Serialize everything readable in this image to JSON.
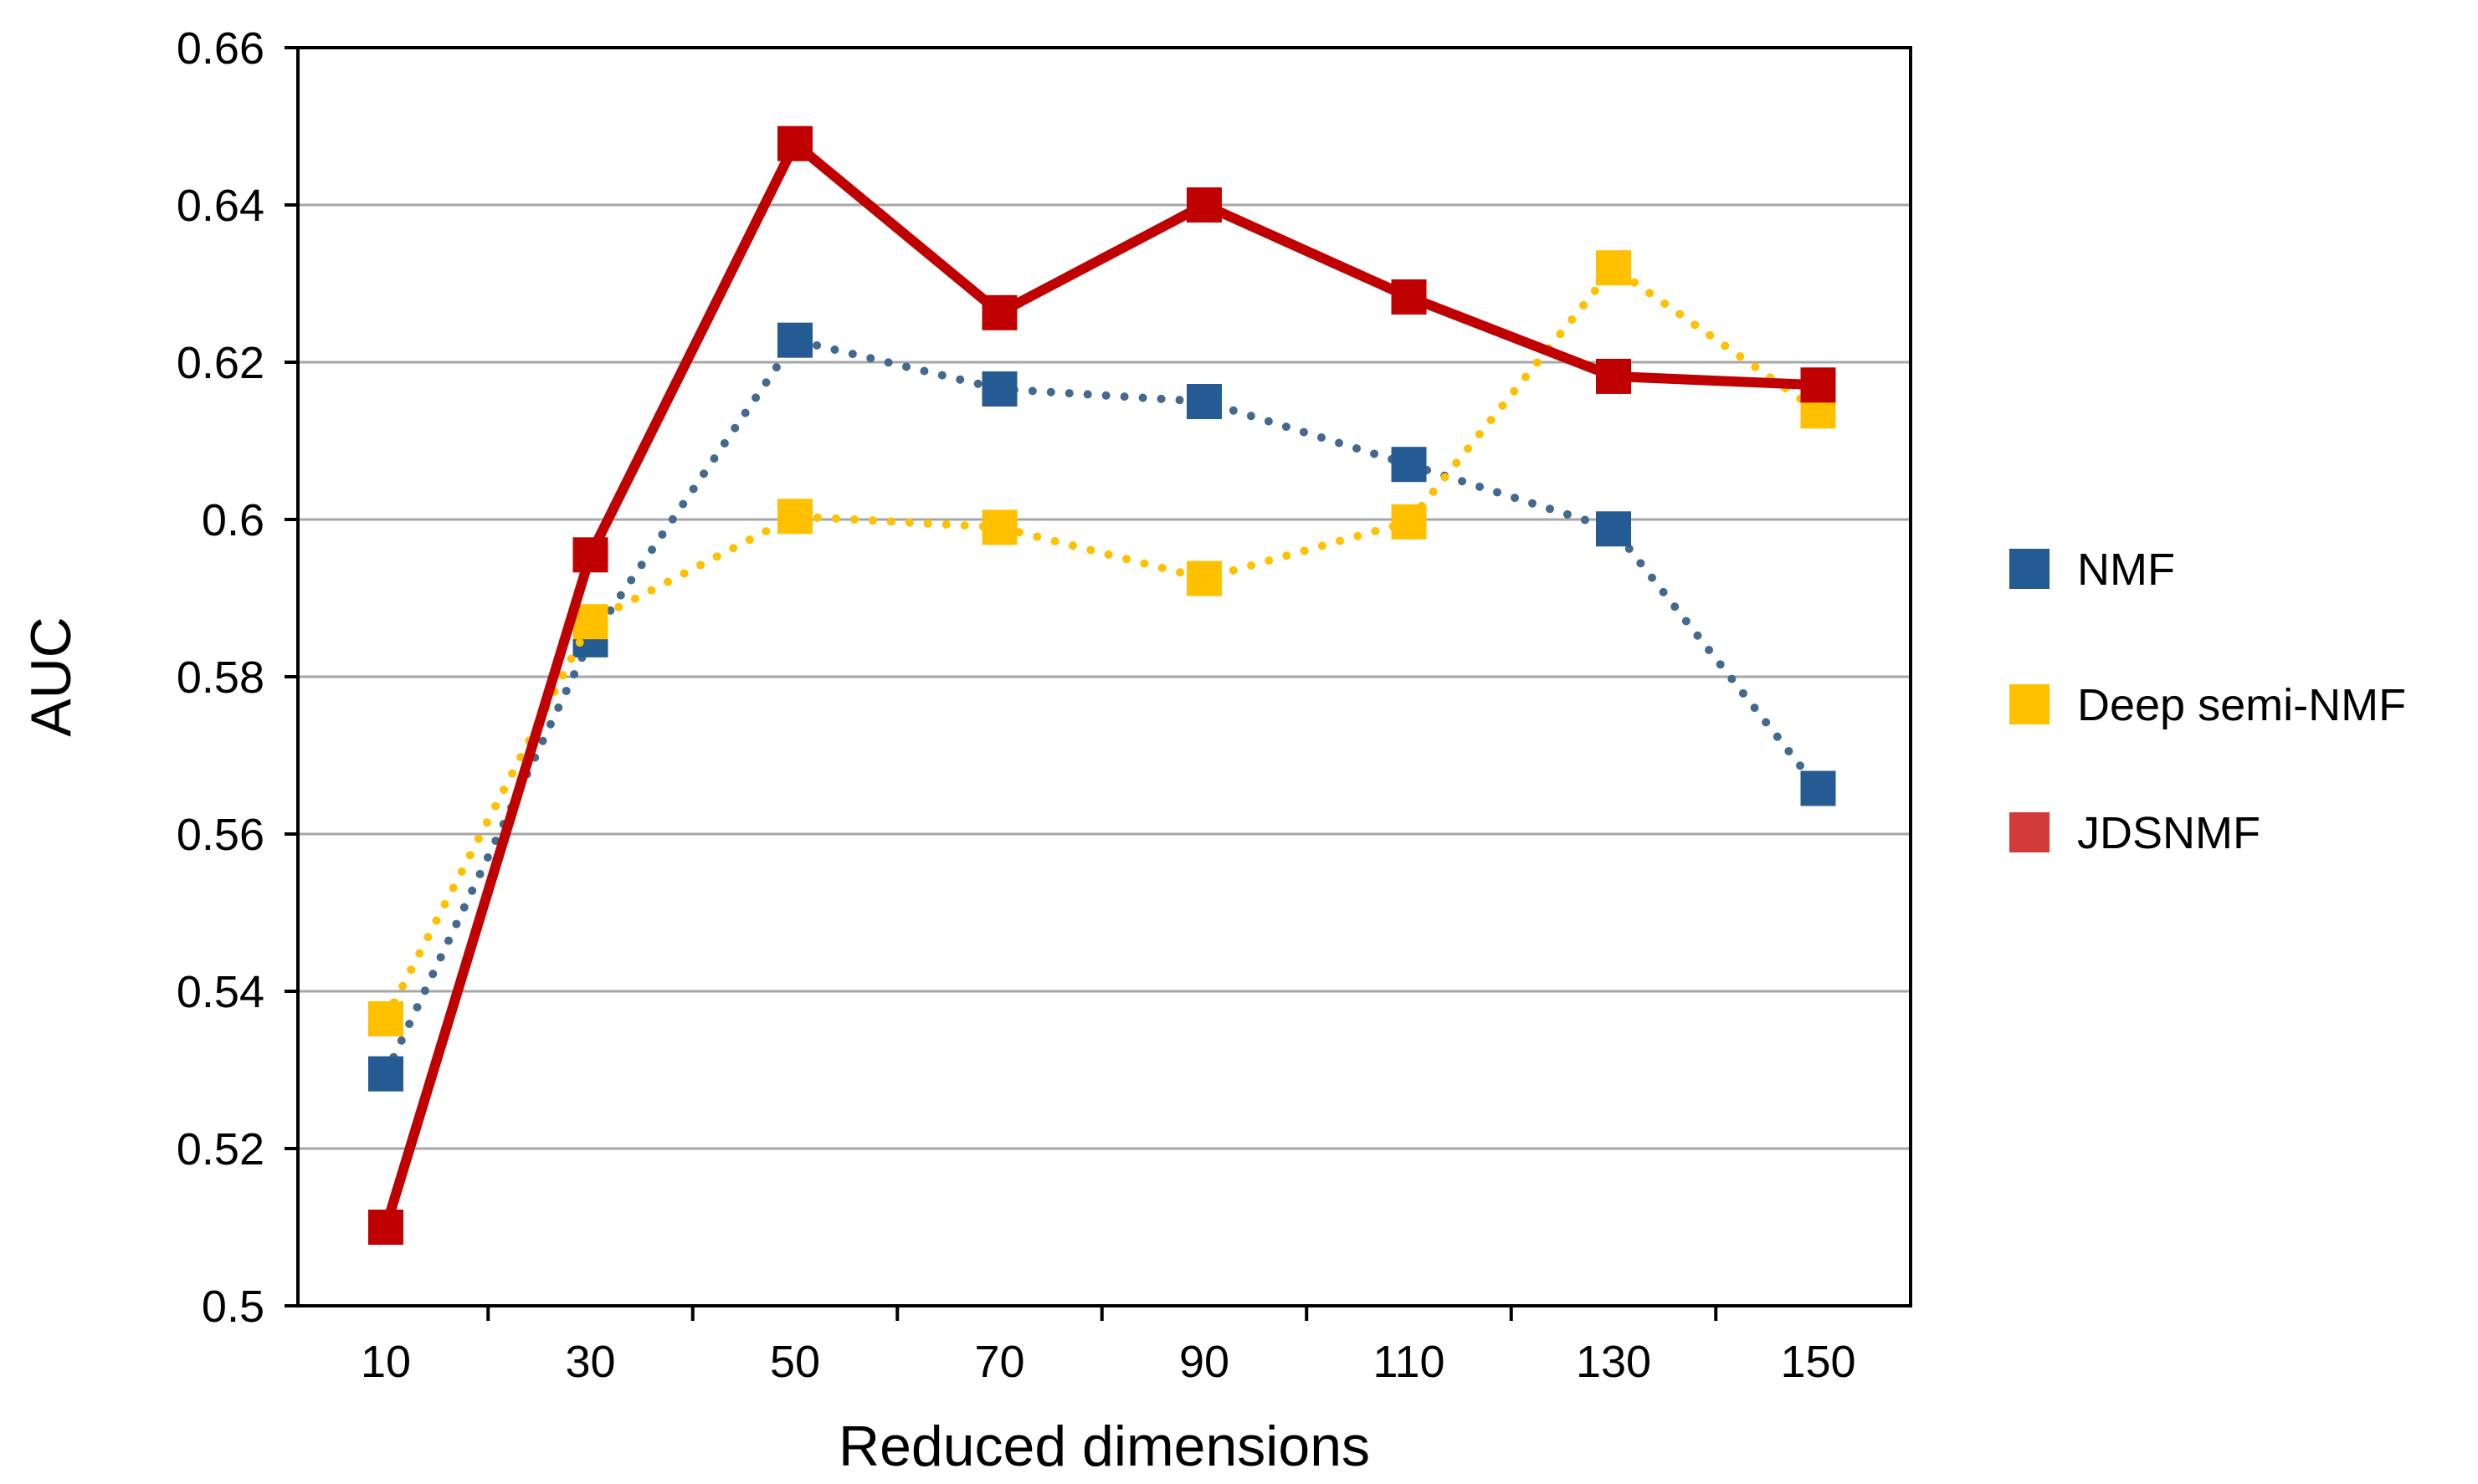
{
  "chart_data": {
    "type": "line",
    "title": "",
    "xlabel": "Reduced dimensions",
    "ylabel": "AUC",
    "x": [
      10,
      30,
      50,
      70,
      90,
      110,
      130,
      150
    ],
    "x_tick_labels": [
      "10",
      "30",
      "50",
      "70",
      "90",
      "110",
      "130",
      "150"
    ],
    "ylim": [
      0.5,
      0.66
    ],
    "y_ticks": [
      0.5,
      0.52,
      0.54,
      0.56,
      0.58,
      0.6,
      0.62,
      0.64,
      0.66
    ],
    "y_tick_labels": [
      "0.5",
      "0.52",
      "0.54",
      "0.56",
      "0.58",
      "0.6",
      "0.62",
      "0.64",
      "0.66"
    ],
    "grid": true,
    "legend_position": "right",
    "series": [
      {
        "name": "NMF",
        "values": [
          0.5295,
          0.5847,
          0.6228,
          0.6166,
          0.615,
          0.607,
          0.5988,
          0.5658
        ],
        "line_style": "dotted",
        "line_color": "#44698f",
        "marker_color": "#245b92"
      },
      {
        "name": "Deep semi-NMF",
        "values": [
          0.5365,
          0.587,
          0.6004,
          0.599,
          0.5925,
          0.5997,
          0.632,
          0.6138
        ],
        "line_style": "dotted",
        "line_color": "#ffc000",
        "marker_color": "#ffc000"
      },
      {
        "name": "JDSNMF",
        "values": [
          0.51,
          0.5955,
          0.6478,
          0.6263,
          0.64,
          0.6283,
          0.6182,
          0.6171
        ],
        "line_style": "solid",
        "line_color": "#c00000",
        "marker_color": "#c00000",
        "legend_marker_color": "#d33a3a"
      }
    ]
  }
}
